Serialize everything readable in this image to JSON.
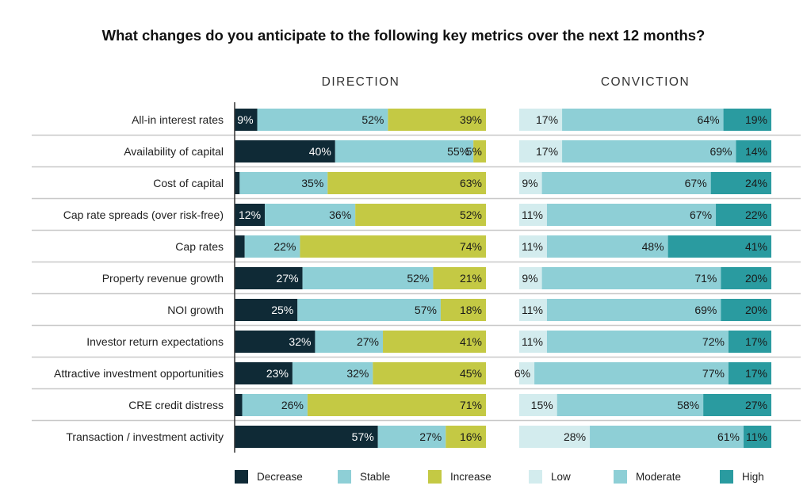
{
  "chart_data": [
    {
      "type": "bar",
      "stacked": true,
      "orientation": "horizontal",
      "title": "What changes do you anticipate to the following key metrics over the next 12 months?",
      "panel_title": "DIRECTION",
      "categories": [
        "All-in interest rates",
        "Availability of capital",
        "Cost of capital",
        "Cap rate spreads (over risk-free)",
        "Cap rates",
        "Property revenue growth",
        "NOI growth",
        "Investor return expectations",
        "Attractive investment opportunities",
        "CRE credit distress",
        "Transaction / investment activity"
      ],
      "series": [
        {
          "name": "Decrease",
          "color": "#0f2a36",
          "values": [
            9,
            40,
            2,
            12,
            4,
            27,
            25,
            32,
            23,
            3,
            57
          ]
        },
        {
          "name": "Stable",
          "color": "#8ecfd6",
          "values": [
            52,
            55,
            35,
            36,
            22,
            52,
            57,
            27,
            32,
            26,
            27
          ]
        },
        {
          "name": "Increase",
          "color": "#c4c944",
          "values": [
            39,
            5,
            63,
            52,
            74,
            21,
            18,
            41,
            45,
            71,
            16
          ]
        }
      ],
      "xlim": [
        0,
        100
      ],
      "unit": "%"
    },
    {
      "type": "bar",
      "stacked": true,
      "orientation": "horizontal",
      "panel_title": "CONVICTION",
      "categories": [
        "All-in interest rates",
        "Availability of capital",
        "Cost of capital",
        "Cap rate spreads (over risk-free)",
        "Cap rates",
        "Property revenue growth",
        "NOI growth",
        "Investor return expectations",
        "Attractive investment opportunities",
        "CRE credit distress",
        "Transaction / investment activity"
      ],
      "series": [
        {
          "name": "Low",
          "color": "#d3ecee",
          "values": [
            17,
            17,
            9,
            11,
            11,
            9,
            11,
            11,
            6,
            15,
            28
          ]
        },
        {
          "name": "Moderate",
          "color": "#8ecfd6",
          "values": [
            64,
            69,
            67,
            67,
            48,
            71,
            69,
            72,
            77,
            58,
            61
          ]
        },
        {
          "name": "High",
          "color": "#2a9ba0",
          "values": [
            19,
            14,
            24,
            22,
            41,
            20,
            20,
            17,
            17,
            27,
            11
          ]
        }
      ],
      "xlim": [
        0,
        100
      ],
      "unit": "%"
    }
  ]
}
